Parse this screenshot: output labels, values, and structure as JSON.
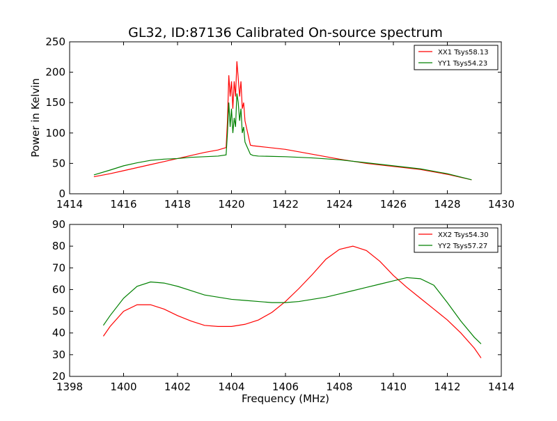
{
  "title": "GL32, ID:87136 Calibrated On-source spectrum",
  "colors": {
    "red": "#ff0000",
    "green": "#008000",
    "axis": "#000000",
    "background": "#ffffff"
  },
  "chart_data": [
    {
      "type": "line",
      "title": "GL32, ID:87136 Calibrated On-source spectrum",
      "xlabel": "",
      "ylabel": "Power in Kelvin",
      "xlim": [
        1414,
        1430
      ],
      "ylim": [
        0,
        250
      ],
      "xticks": [
        "1414",
        "1416",
        "1418",
        "1420",
        "1422",
        "1424",
        "1426",
        "1428",
        "1430"
      ],
      "yticks": [
        "0",
        "50",
        "100",
        "150",
        "200",
        "250"
      ],
      "grid": false,
      "legend_position": "top-right",
      "series": [
        {
          "name": "XX1 Tsys58.13",
          "color": "#ff0000",
          "x": [
            1414.9,
            1415.5,
            1416,
            1416.5,
            1417,
            1417.5,
            1418,
            1418.5,
            1419,
            1419.5,
            1419.8,
            1419.85,
            1419.9,
            1419.95,
            1420.0,
            1420.05,
            1420.1,
            1420.15,
            1420.2,
            1420.25,
            1420.3,
            1420.35,
            1420.4,
            1420.45,
            1420.5,
            1420.55,
            1420.6,
            1420.7,
            1420.8,
            1421,
            1422,
            1423,
            1424,
            1425,
            1426,
            1427,
            1428,
            1428.9
          ],
          "y": [
            28,
            33,
            38,
            43,
            48,
            53,
            58,
            63,
            68,
            72,
            76,
            120,
            195,
            160,
            185,
            140,
            185,
            160,
            218,
            190,
            160,
            185,
            140,
            150,
            120,
            110,
            100,
            80,
            79,
            78,
            73,
            65,
            57,
            50,
            45,
            40,
            32,
            23
          ]
        },
        {
          "name": "YY1 Tsys54.23",
          "color": "#008000",
          "x": [
            1414.9,
            1415.5,
            1416,
            1416.5,
            1417,
            1417.5,
            1418,
            1418.5,
            1419,
            1419.5,
            1419.8,
            1419.85,
            1419.9,
            1419.95,
            1420.0,
            1420.05,
            1420.1,
            1420.15,
            1420.2,
            1420.25,
            1420.3,
            1420.35,
            1420.4,
            1420.45,
            1420.5,
            1420.55,
            1420.6,
            1420.7,
            1420.8,
            1421,
            1422,
            1423,
            1424,
            1425,
            1426,
            1427,
            1428,
            1428.9
          ],
          "y": [
            31,
            39,
            46,
            51,
            55,
            57,
            58,
            60,
            61,
            62,
            64,
            100,
            150,
            110,
            140,
            100,
            125,
            110,
            165,
            150,
            120,
            140,
            100,
            110,
            85,
            80,
            75,
            65,
            63,
            62,
            61,
            59,
            56,
            51,
            46,
            41,
            33,
            23
          ]
        }
      ]
    },
    {
      "type": "line",
      "title": "",
      "xlabel": "Frequency (MHz)",
      "ylabel": "",
      "xlim": [
        1398,
        1414
      ],
      "ylim": [
        20,
        90
      ],
      "xticks": [
        "1398",
        "1400",
        "1402",
        "1404",
        "1406",
        "1408",
        "1410",
        "1412",
        "1414"
      ],
      "yticks": [
        "20",
        "30",
        "40",
        "50",
        "60",
        "70",
        "80",
        "90"
      ],
      "grid": false,
      "legend_position": "top-right",
      "series": [
        {
          "name": "XX2 Tsys54.30",
          "color": "#ff0000",
          "x": [
            1399.25,
            1399.5,
            1400,
            1400.5,
            1401,
            1401.5,
            1402,
            1402.5,
            1403,
            1403.5,
            1404,
            1404.5,
            1405,
            1405.5,
            1406,
            1406.5,
            1407,
            1407.5,
            1408,
            1408.5,
            1409,
            1409.5,
            1410,
            1410.5,
            1411,
            1411.5,
            1412,
            1412.5,
            1413,
            1413.25
          ],
          "y": [
            38.5,
            43,
            50,
            53,
            53,
            51,
            48,
            45.5,
            43.5,
            43,
            43,
            44,
            46,
            49.5,
            54.5,
            60.5,
            67,
            74,
            78.5,
            80,
            78,
            73,
            66.5,
            61,
            56,
            51,
            46,
            40,
            33,
            28.5
          ]
        },
        {
          "name": "YY2 Tsys57.27",
          "color": "#008000",
          "x": [
            1399.25,
            1399.5,
            1400,
            1400.5,
            1401,
            1401.5,
            1402,
            1402.5,
            1403,
            1403.5,
            1404,
            1404.5,
            1405,
            1405.5,
            1406,
            1406.5,
            1407,
            1407.5,
            1408,
            1408.5,
            1409,
            1409.5,
            1410,
            1410.5,
            1411,
            1411.5,
            1412,
            1412.5,
            1413,
            1413.25
          ],
          "y": [
            43.5,
            48,
            56,
            61.5,
            63.5,
            63,
            61.5,
            59.5,
            57.5,
            56.5,
            55.5,
            55,
            54.5,
            54,
            54,
            54.5,
            55.5,
            56.5,
            58,
            59.5,
            61,
            62.5,
            64,
            65.5,
            65,
            62,
            54,
            45.5,
            38,
            35
          ]
        }
      ]
    }
  ]
}
